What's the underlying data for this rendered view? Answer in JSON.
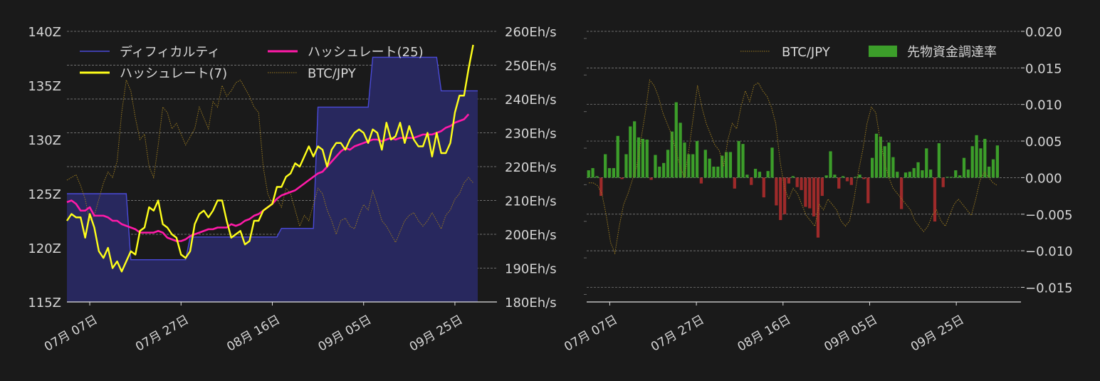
{
  "colors": {
    "background": "#1a1a1a",
    "text": "#d6d6d6",
    "grid": "#8c8c8c",
    "difficulty_line": "#4a4ad8",
    "difficulty_fill": "#28285e",
    "hash7": "#ffff1a",
    "hash25": "#ff1aa8",
    "btc": "#9a7a20",
    "funding_pos": "#3c9e2a",
    "funding_neg": "#9e2a2a"
  },
  "chart_data": [
    {
      "type": "line",
      "x_tick_labels": [
        "07月 07日",
        "07月 27日",
        "08月 16日",
        "09月 05日",
        "09月 25日"
      ],
      "y_left_ticks": [
        "115Z",
        "120Z",
        "125Z",
        "130Z",
        "135Z",
        "140Z"
      ],
      "y_left_values": [
        115,
        120,
        125,
        130,
        135,
        140
      ],
      "y_left_range": [
        115,
        140
      ],
      "y_right_ticks": [
        "180Eh/s",
        "190Eh/s",
        "200Eh/s",
        "210Eh/s",
        "220Eh/s",
        "230Eh/s",
        "240Eh/s",
        "250Eh/s",
        "260Eh/s"
      ],
      "y_right_values": [
        180,
        190,
        200,
        210,
        220,
        230,
        240,
        250,
        260
      ],
      "y_right_range": [
        180,
        260
      ],
      "day_range": [
        0,
        90
      ],
      "x_tick_days": [
        5,
        25,
        45,
        65,
        85
      ],
      "legend": {
        "position": "top-left"
      },
      "series": [
        {
          "name": "ディフィカルティ",
          "axis": "left",
          "style": "step-fill",
          "points": [
            [
              0,
              125.0
            ],
            [
              13,
              125.0
            ],
            [
              14,
              118.9
            ],
            [
              26,
              118.9
            ],
            [
              27,
              121.0
            ],
            [
              46,
              121.0
            ],
            [
              47,
              121.8
            ],
            [
              54,
              121.8
            ],
            [
              55,
              133.0
            ],
            [
              66,
              133.0
            ],
            [
              67,
              137.6
            ],
            [
              81,
              137.6
            ],
            [
              82,
              134.5
            ],
            [
              90,
              134.5
            ]
          ]
        },
        {
          "name": "ハッシュレート(7)",
          "axis": "right",
          "values": [
            204,
            206,
            205,
            205,
            199,
            206,
            202,
            195,
            193,
            196,
            190,
            192,
            189,
            192,
            195,
            194,
            201,
            202,
            208,
            207,
            210,
            203,
            202,
            200,
            199,
            194,
            193,
            195,
            203,
            206,
            207,
            205,
            207,
            210,
            210,
            204,
            199,
            200,
            201,
            197,
            198,
            204,
            204,
            207,
            208,
            209,
            214,
            214,
            217,
            218,
            221,
            220,
            223,
            226,
            223,
            226,
            225,
            220,
            225,
            227,
            227,
            225,
            228,
            230,
            231,
            230,
            227,
            231,
            230,
            225,
            233,
            228,
            229,
            233,
            227,
            232,
            228,
            226,
            226,
            230,
            223,
            230,
            224,
            224,
            227,
            236,
            241,
            241,
            249,
            256
          ]
        },
        {
          "name": "ハッシュレート(25)",
          "axis": "right",
          "values": [
            209.5,
            210,
            209,
            207,
            207,
            208,
            205.5,
            205.5,
            205.5,
            205,
            204,
            204,
            203,
            202.5,
            202,
            201.5,
            200.5,
            200.5,
            200.5,
            200.5,
            201,
            200.5,
            199,
            198.5,
            198,
            198,
            198.5,
            199.5,
            200,
            200.5,
            201,
            201.5,
            201.5,
            202,
            202,
            202,
            203,
            202.5,
            203,
            204,
            204.5,
            205.5,
            206,
            207,
            208,
            209,
            210.5,
            211.5,
            212,
            212.5,
            213,
            214,
            215,
            216,
            217,
            218,
            218.5,
            220,
            221.5,
            223,
            224.5,
            225.5,
            225,
            226,
            226.5,
            227,
            227.5,
            228,
            228,
            227.5,
            228,
            228.5,
            228,
            228.5,
            228.5,
            228.5,
            228.5,
            229,
            229.5,
            229.5,
            229.5,
            230,
            230.5,
            231.5,
            232,
            233,
            233.5,
            234,
            235.5
          ]
        },
        {
          "name": "BTC/JPY",
          "axis": "hidden",
          "values": [
            0.45,
            0.46,
            0.47,
            0.43,
            0.38,
            0.3,
            0.32,
            0.38,
            0.44,
            0.48,
            0.46,
            0.52,
            0.7,
            0.82,
            0.78,
            0.68,
            0.6,
            0.62,
            0.5,
            0.46,
            0.58,
            0.72,
            0.7,
            0.64,
            0.66,
            0.62,
            0.58,
            0.61,
            0.64,
            0.72,
            0.68,
            0.64,
            0.74,
            0.72,
            0.8,
            0.76,
            0.78,
            0.81,
            0.82,
            0.79,
            0.76,
            0.72,
            0.7,
            0.5,
            0.4,
            0.36,
            0.38,
            0.35,
            0.42,
            0.4,
            0.34,
            0.28,
            0.32,
            0.3,
            0.36,
            0.42,
            0.4,
            0.34,
            0.3,
            0.25,
            0.3,
            0.31,
            0.28,
            0.27,
            0.32,
            0.36,
            0.34,
            0.41,
            0.36,
            0.3,
            0.28,
            0.25,
            0.22,
            0.26,
            0.3,
            0.32,
            0.33,
            0.3,
            0.28,
            0.3,
            0.33,
            0.3,
            0.27,
            0.32,
            0.34,
            0.38,
            0.4,
            0.44,
            0.46,
            0.44
          ]
        }
      ]
    },
    {
      "type": "bar",
      "x_tick_labels": [
        "07月 07日",
        "07月 27日",
        "08月 16日",
        "09月 05日",
        "09月 25日"
      ],
      "y_right_ticks": [
        "0.020",
        "0.015",
        "0.010",
        "0.005",
        "0.000",
        "−0.005",
        "−0.010",
        "−0.015"
      ],
      "y_right_values": [
        0.02,
        0.015,
        0.01,
        0.005,
        0.0,
        -0.005,
        -0.01,
        -0.015
      ],
      "y_range": [
        -0.017,
        0.02
      ],
      "day_range": [
        0,
        95
      ],
      "x_tick_days": [
        5,
        25,
        45,
        65,
        85
      ],
      "legend": {
        "position": "top-right"
      },
      "series": [
        {
          "name": "BTC/JPY",
          "axis": "hidden",
          "style": "dotted-line",
          "values": [
            0.44,
            0.44,
            0.43,
            0.4,
            0.32,
            0.22,
            0.18,
            0.28,
            0.36,
            0.4,
            0.45,
            0.5,
            0.6,
            0.7,
            0.82,
            0.8,
            0.76,
            0.7,
            0.66,
            0.62,
            0.56,
            0.5,
            0.46,
            0.56,
            0.68,
            0.8,
            0.72,
            0.66,
            0.62,
            0.58,
            0.56,
            0.5,
            0.6,
            0.66,
            0.64,
            0.72,
            0.78,
            0.74,
            0.8,
            0.81,
            0.78,
            0.76,
            0.72,
            0.66,
            0.52,
            0.42,
            0.38,
            0.42,
            0.4,
            0.36,
            0.32,
            0.3,
            0.28,
            0.36,
            0.34,
            0.38,
            0.36,
            0.34,
            0.3,
            0.28,
            0.3,
            0.38,
            0.48,
            0.56,
            0.66,
            0.72,
            0.7,
            0.6,
            0.52,
            0.46,
            0.42,
            0.4,
            0.38,
            0.36,
            0.34,
            0.3,
            0.28,
            0.26,
            0.28,
            0.32,
            0.34,
            0.3,
            0.28,
            0.32,
            0.36,
            0.38,
            0.36,
            0.34,
            0.32,
            0.38,
            0.45,
            0.48,
            0.46,
            0.44,
            0.43
          ]
        },
        {
          "name": "先物資金調達率",
          "axis": "right",
          "style": "bars",
          "values": [
            0.001,
            0.0013,
            0.0002,
            -0.0025,
            0.0032,
            0.0013,
            0.0013,
            0.0057,
            -0.0002,
            0.0032,
            0.007,
            0.0077,
            0.0055,
            0.0053,
            0.0052,
            -0.0003,
            0.0031,
            0.0015,
            0.002,
            0.0038,
            0.0063,
            0.0103,
            0.0075,
            0.0048,
            0.0032,
            0.0032,
            0.005,
            -0.0008,
            0.0038,
            0.0026,
            0.0015,
            0.0015,
            0.003,
            0.0035,
            0.0035,
            -0.0015,
            0.005,
            0.0046,
            0.0004,
            -0.001,
            0.0012,
            0.0008,
            -0.0027,
            0.0009,
            0.0041,
            -0.0038,
            -0.0058,
            -0.005,
            -0.0008,
            0.0002,
            -0.0013,
            -0.0017,
            -0.004,
            -0.0042,
            -0.0053,
            -0.0082,
            -0.0025,
            0.0003,
            0.0036,
            0.0004,
            -0.0015,
            0.0002,
            -0.0005,
            -0.001,
            0.0001,
            0.0004,
            -0.0002,
            -0.0035,
            0.0027,
            0.006,
            0.0056,
            0.0043,
            0.0048,
            0.0028,
            0.0008,
            -0.0043,
            0.0007,
            0.0008,
            0.0013,
            0.0021,
            0.001,
            0.004,
            0.0011,
            -0.006,
            0.0047,
            -0.0013,
            0.0001,
            0.0001,
            0.001,
            0.0003,
            0.0027,
            0.0011,
            0.0043,
            0.0058,
            0.004,
            0.0053,
            0.0015,
            0.0025,
            0.0044
          ]
        }
      ]
    }
  ]
}
